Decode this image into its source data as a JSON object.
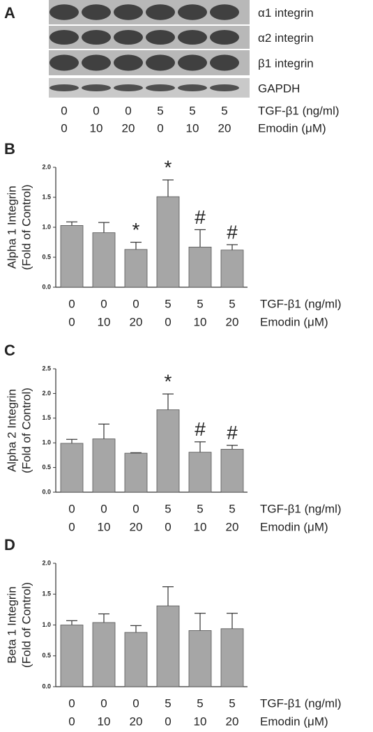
{
  "blot": {
    "panel": "A",
    "rows": [
      "α1 integrin",
      "α2 integrin",
      "β1 integrin",
      "GAPDH"
    ],
    "lane_levels": [
      {
        "name": "TGF-β1 (ng/ml)",
        "labels": [
          "0",
          "0",
          "0",
          "5",
          "5",
          "5"
        ]
      },
      {
        "name": "Emodin (μM)",
        "labels": [
          "0",
          "10",
          "20",
          "0",
          "10",
          "20"
        ]
      }
    ]
  },
  "chart_data": [
    {
      "type": "bar",
      "panel": "B",
      "ylabel": [
        "Alpha 1 Integrin",
        "(Fold of Control)"
      ],
      "category_levels": [
        {
          "name": "TGF-β1 (ng/ml)",
          "labels": [
            "0",
            "0",
            "0",
            "5",
            "5",
            "5"
          ]
        },
        {
          "name": "Emodin (μM)",
          "labels": [
            "0",
            "10",
            "20",
            "0",
            "10",
            "20"
          ]
        }
      ],
      "values": [
        1.03,
        0.91,
        0.63,
        1.51,
        0.67,
        0.62
      ],
      "errors": [
        0.06,
        0.17,
        0.12,
        0.28,
        0.29,
        0.09
      ],
      "markers": [
        null,
        null,
        "*",
        "*",
        "#",
        "#"
      ],
      "color": "#a6a6a6",
      "ylim": [
        0,
        2.0
      ],
      "yticks": [
        {
          "value": 0,
          "label": "0.0"
        },
        0.5,
        {
          "value": 1,
          "label": "1.0"
        },
        1.5,
        {
          "value": 2,
          "label": "2.0"
        }
      ]
    },
    {
      "type": "bar",
      "panel": "C",
      "ylabel": [
        "Alpha 2 Integrin",
        "(Fold of Control)"
      ],
      "category_levels": [
        {
          "name": "TGF-β1 (ng/ml)",
          "labels": [
            "0",
            "0",
            "0",
            "5",
            "5",
            "5"
          ]
        },
        {
          "name": "Emodin (μM)",
          "labels": [
            "0",
            "10",
            "20",
            "0",
            "10",
            "20"
          ]
        }
      ],
      "values": [
        0.99,
        1.08,
        0.79,
        1.67,
        0.81,
        0.87
      ],
      "errors": [
        0.08,
        0.3,
        0.01,
        0.32,
        0.21,
        0.08
      ],
      "markers": [
        null,
        null,
        null,
        "*",
        "#",
        "#"
      ],
      "color": "#a6a6a6",
      "ylim": [
        0,
        2.5
      ],
      "yticks": [
        {
          "value": 0,
          "label": "0.0"
        },
        0.5,
        {
          "value": 1,
          "label": "1.0"
        },
        1.5,
        {
          "value": 2,
          "label": "2.0"
        },
        2.5
      ]
    },
    {
      "type": "bar",
      "panel": "D",
      "ylabel": [
        "Beta 1 Integrin",
        "(Fold of Control)"
      ],
      "category_levels": [
        {
          "name": "TGF-β1 (ng/ml)",
          "labels": [
            "0",
            "0",
            "0",
            "5",
            "5",
            "5"
          ]
        },
        {
          "name": "Emodin (μM)",
          "labels": [
            "0",
            "10",
            "20",
            "0",
            "10",
            "20"
          ]
        }
      ],
      "values": [
        1.0,
        1.04,
        0.88,
        1.31,
        0.91,
        0.94
      ],
      "errors": [
        0.07,
        0.14,
        0.11,
        0.31,
        0.28,
        0.25
      ],
      "markers": [
        null,
        null,
        null,
        null,
        null,
        null
      ],
      "color": "#a6a6a6",
      "ylim": [
        0,
        2.0
      ],
      "yticks": [
        {
          "value": 0,
          "label": "0.0"
        },
        0.5,
        {
          "value": 1,
          "label": "1.0"
        },
        1.5,
        {
          "value": 2,
          "label": "2.0"
        }
      ]
    }
  ]
}
